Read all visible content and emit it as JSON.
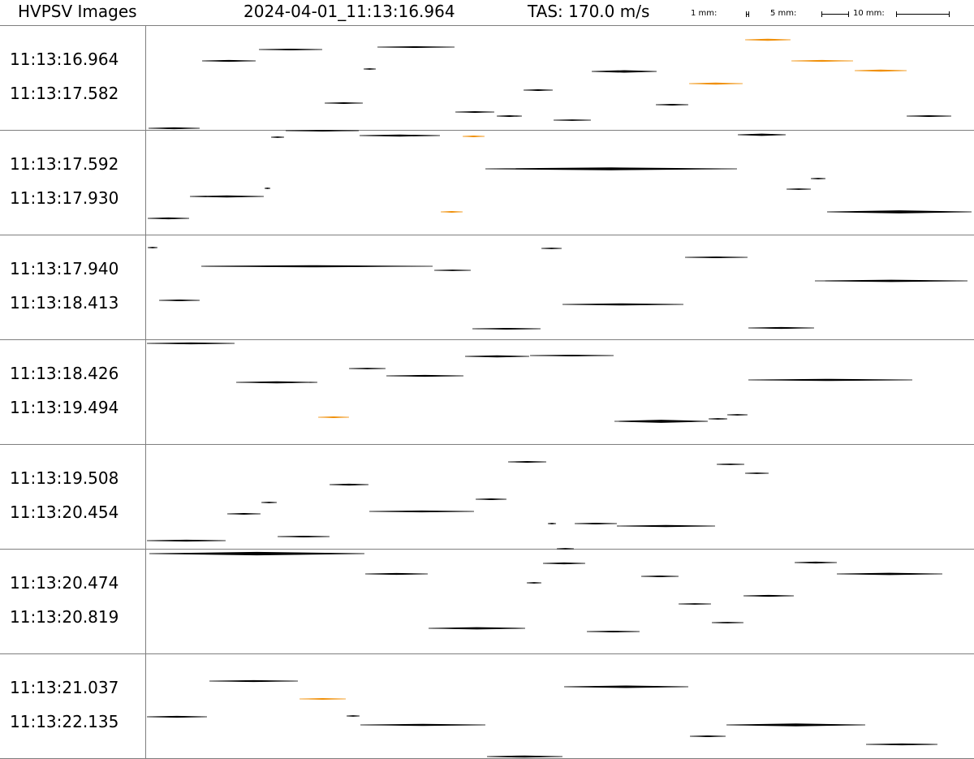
{
  "header": {
    "title": "HVPSV Images",
    "timestamp": "2024-04-01_11:13:16.964",
    "tas": "TAS: 170.0 m/s",
    "scale_labels": [
      "1 mm:",
      "5 mm:",
      "10 mm:"
    ]
  },
  "colors": {
    "ink": "#000000",
    "highlight": "#f0900a",
    "rule": "#7f7f7f"
  },
  "strips": [
    {
      "start": "11:13:16.964",
      "end": "11:13:17.582"
    },
    {
      "start": "11:13:17.592",
      "end": "11:13:17.930"
    },
    {
      "start": "11:13:17.940",
      "end": "11:13:18.413"
    },
    {
      "start": "11:13:18.426",
      "end": "11:13:19.494"
    },
    {
      "start": "11:13:19.508",
      "end": "11:13:20.454"
    },
    {
      "start": "11:13:20.474",
      "end": "11:13:20.819"
    },
    {
      "start": "11:13:21.037",
      "end": "11:13:22.135"
    }
  ]
}
